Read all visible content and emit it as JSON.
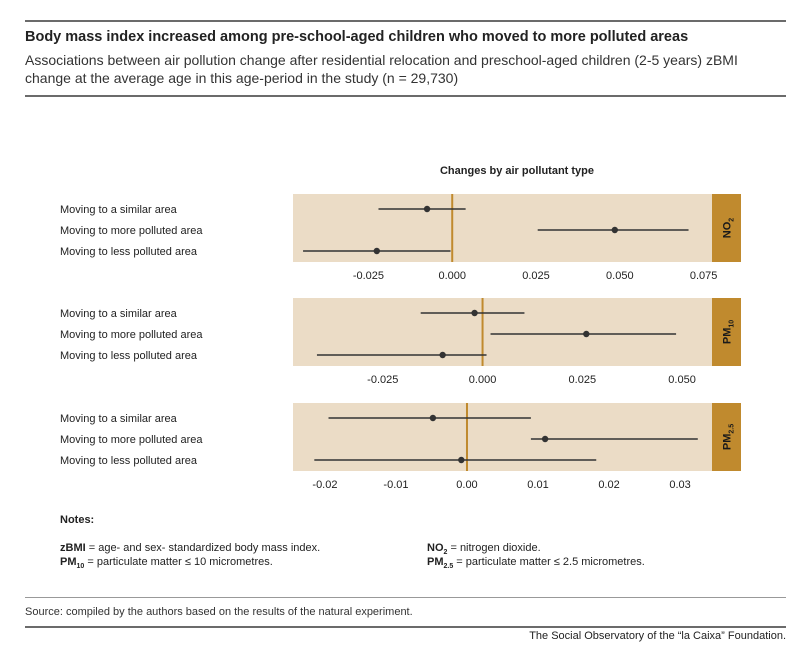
{
  "header": {
    "title": "Body mass index increased among pre-school-aged children who moved to more polluted areas",
    "subtitle": "Associations between air pollution change after residential relocation and preschool-aged children (2-5 years) zBMI change at the average age in this age-period in the study (n = 29,730)"
  },
  "chart_header": "Changes by air pollutant type",
  "colors": {
    "panel_bg": "#ebdcc6",
    "accent": "#c08a2e",
    "zero_line": "#c08a2e",
    "point": "#333333"
  },
  "chart_data": {
    "type": "forest",
    "categories": [
      "Moving to a similar area",
      "Moving to more polluted area",
      "Moving to less polluted area"
    ],
    "panels": [
      {
        "label_main": "NO",
        "label_sub": "2",
        "xlim": [
          -0.0475,
          0.0775
        ],
        "ticks": [
          -0.025,
          0.0,
          0.025,
          0.05,
          0.075
        ],
        "tick_labels": [
          "-0.025",
          "0.000",
          "0.025",
          "0.050",
          "0.075"
        ],
        "rows": [
          {
            "est": -0.0075,
            "low": -0.022,
            "high": 0.004
          },
          {
            "est": 0.0485,
            "low": 0.0255,
            "high": 0.0705
          },
          {
            "est": -0.0225,
            "low": -0.0445,
            "high": -0.0005
          }
        ]
      },
      {
        "label_main": "PM",
        "label_sub": "10",
        "xlim": [
          -0.0475,
          0.0575
        ],
        "ticks": [
          -0.025,
          0.0,
          0.025,
          0.05
        ],
        "tick_labels": [
          "-0.025",
          "0.000",
          "0.025",
          "0.050"
        ],
        "rows": [
          {
            "est": -0.002,
            "low": -0.0155,
            "high": 0.0105
          },
          {
            "est": 0.026,
            "low": 0.002,
            "high": 0.0485
          },
          {
            "est": -0.01,
            "low": -0.0415,
            "high": 0.001
          }
        ]
      },
      {
        "label_main": "PM",
        "label_sub": "2.5",
        "xlim": [
          -0.0245,
          0.0345
        ],
        "ticks": [
          -0.02,
          -0.01,
          0.0,
          0.01,
          0.02,
          0.03
        ],
        "tick_labels": [
          "-0.02",
          "-0.01",
          "0.00",
          "0.01",
          "0.02",
          "0.03"
        ],
        "rows": [
          {
            "est": -0.0048,
            "low": -0.0195,
            "high": 0.009
          },
          {
            "est": 0.011,
            "low": 0.009,
            "high": 0.0325
          },
          {
            "est": -0.0008,
            "low": -0.0215,
            "high": 0.0182
          }
        ]
      }
    ]
  },
  "notes": {
    "title": "Notes:",
    "zbmi_term": "zBMI",
    "zbmi_def": " = age- and sex- standardized body mass index.",
    "pm10_term": "PM",
    "pm10_sub": "10",
    "pm10_def": " = particulate matter ≤ 10 micrometres.",
    "no2_term": "NO",
    "no2_sub": "2",
    "no2_def": " = nitrogen dioxide.",
    "pm25_term": "PM",
    "pm25_sub": "2.5",
    "pm25_def": " = particulate matter ≤ 2.5 micrometres."
  },
  "source": "Source: compiled by the authors based on the results of the natural experiment.",
  "credit": "The Social Observatory of the “la Caixa” Foundation."
}
